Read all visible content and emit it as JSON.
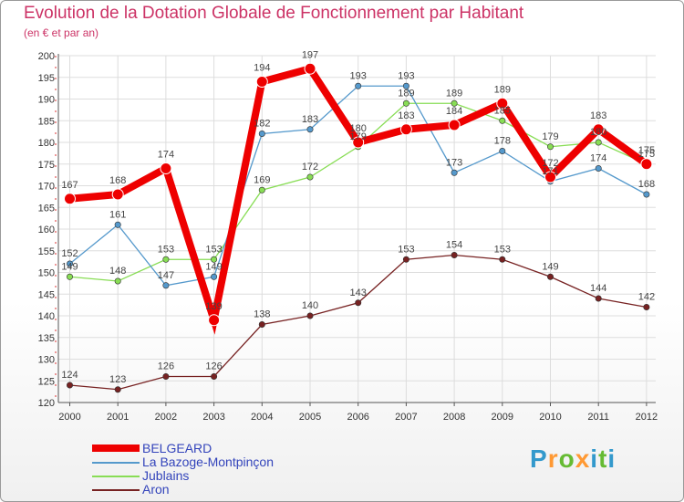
{
  "title": "Evolution de la Dotation Globale de Fonctionnement par Habitant",
  "subtitle": "(en € et par an)",
  "logo": {
    "text": "Proxiti",
    "letter_colors": [
      "#3399cc",
      "#ff9933",
      "#66bb33",
      "#ff9933",
      "#3399cc",
      "#66bb33",
      "#3399cc"
    ]
  },
  "chart_data": {
    "type": "line",
    "categories": [
      "2000",
      "2001",
      "2002",
      "2003",
      "2004",
      "2005",
      "2006",
      "2007",
      "2008",
      "2009",
      "2010",
      "2011",
      "2012"
    ],
    "ylim": [
      120,
      200
    ],
    "yticks": [
      "120",
      "125",
      "130",
      "135",
      "140",
      "145",
      "150",
      "155",
      "160",
      "165",
      "170",
      "175",
      "180",
      "185",
      "190",
      "195",
      "200"
    ],
    "grid": true,
    "legend_position": "bottom-left",
    "series": [
      {
        "name": "BELGEARD",
        "color": "#ee0000",
        "values": [
          167,
          168,
          174,
          139,
          194,
          197,
          180,
          183,
          184,
          189,
          172,
          183,
          175
        ]
      },
      {
        "name": "La Bazoge-Montpinçon",
        "color": "#5599cc",
        "values": [
          152,
          161,
          147,
          149,
          182,
          183,
          193,
          193,
          173,
          178,
          171,
          174,
          168
        ]
      },
      {
        "name": "Jublains",
        "color": "#88dd55",
        "values": [
          149,
          148,
          153,
          153,
          169,
          172,
          179,
          189,
          189,
          185,
          179,
          180,
          175
        ]
      },
      {
        "name": "Aron",
        "color": "#772222",
        "values": [
          124,
          123,
          126,
          126,
          138,
          140,
          143,
          153,
          154,
          153,
          149,
          144,
          142
        ]
      }
    ]
  }
}
